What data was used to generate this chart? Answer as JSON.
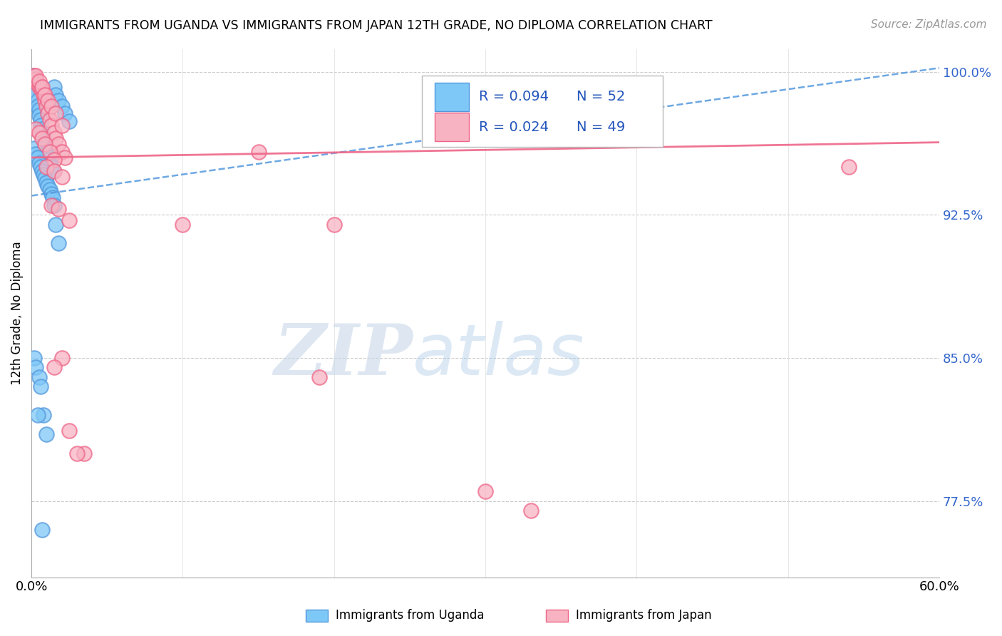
{
  "title": "IMMIGRANTS FROM UGANDA VS IMMIGRANTS FROM JAPAN 12TH GRADE, NO DIPLOMA CORRELATION CHART",
  "source": "Source: ZipAtlas.com",
  "ylabel": "12th Grade, No Diploma",
  "xlim": [
    0.0,
    0.6
  ],
  "ylim": [
    0.735,
    1.012
  ],
  "yticks": [
    0.775,
    0.85,
    0.925,
    1.0
  ],
  "ytick_labels": [
    "77.5%",
    "85.0%",
    "92.5%",
    "100.0%"
  ],
  "xticks": [
    0.0,
    0.1,
    0.2,
    0.3,
    0.4,
    0.5,
    0.6
  ],
  "xtick_labels": [
    "0.0%",
    "",
    "",
    "",
    "",
    "",
    "60.0%"
  ],
  "blue_color": "#7ec8f7",
  "pink_color": "#f7b3c2",
  "trend_blue_color": "#5599dd",
  "trend_pink_color": "#ee6688",
  "watermark_zip": "ZIP",
  "watermark_atlas": "atlas",
  "blue_trend_x": [
    0.0,
    0.6
  ],
  "blue_trend_y": [
    0.935,
    1.002
  ],
  "pink_trend_x": [
    0.0,
    0.6
  ],
  "pink_trend_y": [
    0.955,
    0.963
  ],
  "uganda_x": [
    0.001,
    0.002,
    0.003,
    0.003,
    0.004,
    0.004,
    0.005,
    0.005,
    0.006,
    0.006,
    0.007,
    0.007,
    0.008,
    0.008,
    0.009,
    0.009,
    0.01,
    0.01,
    0.011,
    0.012,
    0.013,
    0.014,
    0.015,
    0.016,
    0.018,
    0.02,
    0.022,
    0.025,
    0.002,
    0.003,
    0.004,
    0.005,
    0.006,
    0.007,
    0.008,
    0.009,
    0.01,
    0.011,
    0.012,
    0.013,
    0.014,
    0.015,
    0.016,
    0.018,
    0.002,
    0.003,
    0.005,
    0.006,
    0.008,
    0.01,
    0.004,
    0.007
  ],
  "uganda_y": [
    0.998,
    0.995,
    0.992,
    0.988,
    0.985,
    0.982,
    0.98,
    0.977,
    0.975,
    0.972,
    0.97,
    0.968,
    0.966,
    0.964,
    0.962,
    0.96,
    0.958,
    0.956,
    0.954,
    0.952,
    0.95,
    0.948,
    0.992,
    0.988,
    0.985,
    0.982,
    0.978,
    0.974,
    0.96,
    0.957,
    0.955,
    0.952,
    0.95,
    0.948,
    0.946,
    0.944,
    0.942,
    0.94,
    0.938,
    0.936,
    0.934,
    0.93,
    0.92,
    0.91,
    0.85,
    0.845,
    0.84,
    0.835,
    0.82,
    0.81,
    0.82,
    0.76
  ],
  "japan_x": [
    0.002,
    0.003,
    0.004,
    0.005,
    0.006,
    0.007,
    0.008,
    0.009,
    0.01,
    0.011,
    0.012,
    0.013,
    0.015,
    0.016,
    0.018,
    0.02,
    0.022,
    0.003,
    0.005,
    0.007,
    0.009,
    0.011,
    0.013,
    0.016,
    0.02,
    0.003,
    0.005,
    0.007,
    0.009,
    0.012,
    0.015,
    0.01,
    0.015,
    0.02,
    0.15,
    0.54,
    0.013,
    0.018,
    0.025,
    0.1,
    0.2,
    0.02,
    0.3,
    0.015,
    0.19,
    0.33,
    0.025,
    0.035,
    0.03
  ],
  "japan_y": [
    0.998,
    0.996,
    0.994,
    0.992,
    0.992,
    0.99,
    0.988,
    0.985,
    0.982,
    0.978,
    0.975,
    0.972,
    0.968,
    0.965,
    0.962,
    0.958,
    0.955,
    0.998,
    0.995,
    0.992,
    0.988,
    0.985,
    0.982,
    0.978,
    0.972,
    0.97,
    0.968,
    0.965,
    0.962,
    0.958,
    0.954,
    0.95,
    0.948,
    0.945,
    0.958,
    0.95,
    0.93,
    0.928,
    0.922,
    0.92,
    0.92,
    0.85,
    0.78,
    0.845,
    0.84,
    0.77,
    0.812,
    0.8,
    0.8
  ]
}
